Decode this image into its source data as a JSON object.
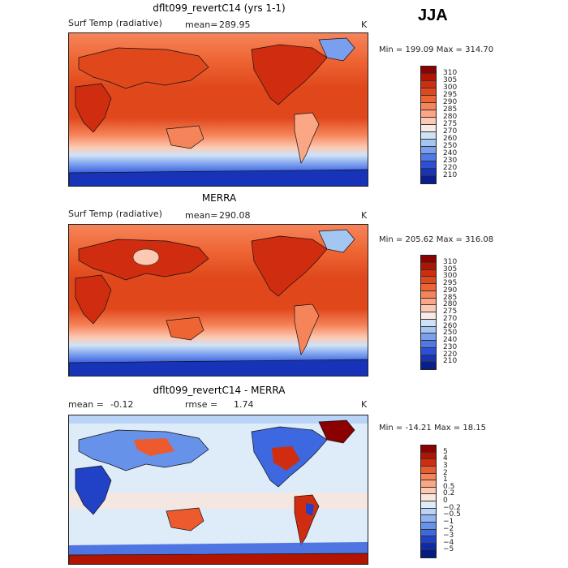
{
  "season": "JJA",
  "unit": "K",
  "chart_data": [
    {
      "type": "heatmap",
      "title": "dflt099_revertC14 (yrs 1-1)",
      "variable": "Surf Temp (radiative)",
      "stat_label": "mean=",
      "stat_value": "289.95",
      "unit": "K",
      "min_label": "Min =",
      "min": "199.09",
      "max_label": "Max =",
      "max": "314.70",
      "colorbar_levels": [
        "310",
        "305",
        "300",
        "295",
        "290",
        "285",
        "280",
        "275",
        "270",
        "260",
        "250",
        "240",
        "230",
        "220",
        "210"
      ],
      "colorbar_colors": [
        "#8b0000",
        "#b21400",
        "#d02d10",
        "#e0481c",
        "#ee6433",
        "#f6845a",
        "#fba785",
        "#fcc9b3",
        "#f7ebe5",
        "#cfe3f7",
        "#a4c6f3",
        "#7a9fee",
        "#4f79e6",
        "#2b4fd9",
        "#1733b8",
        "#0a1f8c"
      ]
    },
    {
      "type": "heatmap",
      "title": "MERRA",
      "variable": "Surf Temp (radiative)",
      "stat_label": "mean=",
      "stat_value": "290.08",
      "unit": "K",
      "min_label": "Min =",
      "min": "205.62",
      "max_label": "Max =",
      "max": "316.08",
      "colorbar_levels": [
        "310",
        "305",
        "300",
        "295",
        "290",
        "285",
        "280",
        "275",
        "270",
        "260",
        "250",
        "240",
        "230",
        "220",
        "210"
      ],
      "colorbar_colors": [
        "#8b0000",
        "#b21400",
        "#d02d10",
        "#e0481c",
        "#ee6433",
        "#f6845a",
        "#fba785",
        "#fcc9b3",
        "#f7ebe5",
        "#cfe3f7",
        "#a4c6f3",
        "#7a9fee",
        "#4f79e6",
        "#2b4fd9",
        "#1733b8",
        "#0a1f8c"
      ]
    },
    {
      "type": "heatmap",
      "title": "dflt099_revertC14 - MERRA",
      "stat_label": "mean =",
      "stat_value": "-0.12",
      "rmse_label": "rmse =",
      "rmse_value": "1.74",
      "unit": "K",
      "min_label": "Min =",
      "min": "-14.21",
      "max_label": "Max =",
      "max": "18.15",
      "colorbar_levels": [
        "5",
        "4",
        "3",
        "2",
        "1",
        "0.5",
        "0.2",
        "0",
        "−0.2",
        "−0.5",
        "−1",
        "−2",
        "−3",
        "−4",
        "−5"
      ],
      "colorbar_colors": [
        "#8b0000",
        "#b21400",
        "#d02d10",
        "#ec5a2e",
        "#f6845a",
        "#fba785",
        "#fcc9b3",
        "#f9e6dc",
        "#deebf8",
        "#b9d4f6",
        "#8eb4f1",
        "#6692ea",
        "#3e68df",
        "#2141c7",
        "#0f2aa6",
        "#061b7f"
      ]
    }
  ]
}
